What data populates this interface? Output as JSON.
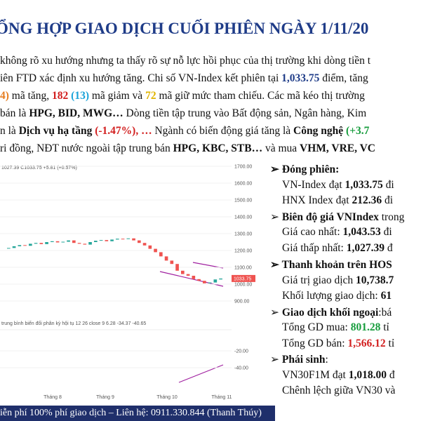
{
  "header": {
    "title": "ỔNG HỢP GIAO DỊCH CUỐI PHIÊN NGÀY 1/11/20"
  },
  "paragraph": [
    [
      "không rõ xu hướng nhưng ta thấy rõ sự nỗ lực hồi phục của thị trường khi dòng tiền t"
    ],
    [
      "iên FTD xác định xu hướng tăng. Chi số VN-Index kết phiên tại ",
      "1,033.75",
      " điểm, tăng"
    ],
    [
      "4)",
      " mã tăng, ",
      "182",
      " (13)",
      " mã giảm và ",
      "72",
      " mã giữ mức tham chiếu. Các mã kéo thị trường"
    ],
    [
      "bán là ",
      "HPG, BID, MWG…",
      " Dòng tiền tập trung vào Bất động sản, Ngân hàng, Kim"
    ],
    [
      "n là ",
      "Dịch vụ hạ tầng",
      " (-1.47%), …",
      " Ngành có biến động giá tăng là ",
      "Công nghệ",
      " (+3.7"
    ],
    [
      "ri đồng, NĐT nước ngoài tập trung bán ",
      "HPG, KBC, STB…",
      " và mua ",
      "VHM, VRE, VC"
    ]
  ],
  "side": [
    [
      "Đóng phiên:"
    ],
    [
      "VN-Index đạt ",
      "1,033.75",
      " đi"
    ],
    [
      "HNX Index đạt ",
      "212.36",
      " đi"
    ],
    [
      "Biên độ giá VNIndex",
      " trong"
    ],
    [
      "Giá cao nhất: ",
      "1,043.53",
      " đi"
    ],
    [
      "Giá thấp nhất: ",
      "1,027.39",
      " đ"
    ],
    [
      "Thanh khoản trên HOS"
    ],
    [
      "Giá trị giao dịch ",
      "10,738.7"
    ],
    [
      "Khối lượng giao dịch: ",
      "61"
    ],
    [
      "Giao dịch khối ngoại",
      ":bá"
    ],
    [
      "Tổng GD mua: ",
      "801.28",
      " tỉ"
    ],
    [
      "Tổng GD bán: ",
      "1,566.12",
      " tỉ"
    ],
    [
      "Phái sinh",
      ":"
    ],
    [
      "VN30F1M đạt ",
      "1,018.00",
      " đ"
    ],
    [
      "Chênh lệch giữa VN30 và"
    ]
  ],
  "footer": "iễn phí 100% phí giao dịch – Liên hệ: 0911.330.844 (Thanh Thúy)",
  "chart": {
    "type": "candlestick",
    "legend": "1027.39 C1033.75 +5.81 (+0.57%)",
    "macd_label": "trung bình biến đổi phân kỳ hội tụ 12 26 close 9  6.28  -34.37  -40.65",
    "last_price": "1033.75",
    "categories": [
      "Tháng 8",
      "Tháng 9",
      "Tháng 10",
      "Tháng 11"
    ],
    "yticks": [
      {
        "value": 1700,
        "label": "1700.00"
      },
      {
        "value": 1600,
        "label": "1600.00"
      },
      {
        "value": 1500,
        "label": "1500.00"
      },
      {
        "value": 1400,
        "label": "1400.00"
      },
      {
        "value": 1300,
        "label": "1300.00"
      },
      {
        "value": 1200,
        "label": "1200.00"
      },
      {
        "value": 1100,
        "label": "1100.00"
      },
      {
        "value": 1000,
        "label": "1000.00"
      },
      {
        "value": 900,
        "label": "900.00"
      }
    ],
    "macd_ticks": [
      {
        "value": -20,
        "label": "-20.00"
      },
      {
        "value": -40,
        "label": "-40.00"
      }
    ],
    "closes": [
      1215,
      1225,
      1232,
      1228,
      1240,
      1245,
      1238,
      1250,
      1255,
      1248,
      1252,
      1260,
      1245,
      1240,
      1235,
      1250,
      1258,
      1262,
      1255,
      1265,
      1270,
      1268,
      1272,
      1260,
      1245,
      1230,
      1210,
      1190,
      1165,
      1140,
      1120,
      1080,
      1060,
      1050,
      1030,
      1020,
      1005,
      1010,
      1028,
      1033.75
    ]
  }
}
